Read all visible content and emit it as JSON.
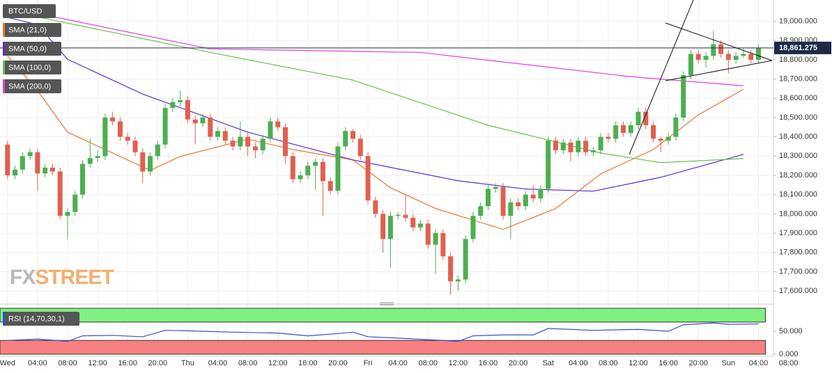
{
  "chart_data": {
    "type": "candlestick",
    "symbol": "BTC/USD",
    "last_price": {
      "value": 18861.275,
      "label": "18,861.275"
    },
    "watermark": [
      "FX",
      "STREET"
    ],
    "up_color": "#4caf50",
    "down_color": "#e0604f",
    "candles": [
      [
        18360,
        18380,
        18180,
        18200
      ],
      [
        18200,
        18250,
        18180,
        18230
      ],
      [
        18230,
        18320,
        18210,
        18300
      ],
      [
        18300,
        18340,
        18280,
        18320
      ],
      [
        18320,
        18340,
        18120,
        18210
      ],
      [
        18210,
        18260,
        18190,
        18240
      ],
      [
        18240,
        18260,
        18200,
        18220
      ],
      [
        18220,
        18240,
        17970,
        17990
      ],
      [
        17990,
        18030,
        17870,
        18010
      ],
      [
        18010,
        18120,
        17990,
        18100
      ],
      [
        18100,
        18280,
        18080,
        18260
      ],
      [
        18260,
        18390,
        18240,
        18290
      ],
      [
        18290,
        18330,
        18270,
        18300
      ],
      [
        18300,
        18520,
        18280,
        18500
      ],
      [
        18500,
        18530,
        18460,
        18480
      ],
      [
        18480,
        18500,
        18380,
        18400
      ],
      [
        18400,
        18420,
        18360,
        18380
      ],
      [
        18380,
        18400,
        18300,
        18320
      ],
      [
        18320,
        18340,
        18160,
        18220
      ],
      [
        18220,
        18320,
        18200,
        18300
      ],
      [
        18300,
        18380,
        18280,
        18360
      ],
      [
        18360,
        18570,
        18340,
        18550
      ],
      [
        18550,
        18600,
        18530,
        18580
      ],
      [
        18580,
        18640,
        18560,
        18590
      ],
      [
        18590,
        18610,
        18470,
        18490
      ],
      [
        18490,
        18510,
        18360,
        18470
      ],
      [
        18470,
        18520,
        18450,
        18500
      ],
      [
        18500,
        18520,
        18380,
        18400
      ],
      [
        18400,
        18450,
        18380,
        18430
      ],
      [
        18430,
        18450,
        18360,
        18380
      ],
      [
        18380,
        18400,
        18330,
        18350
      ],
      [
        18350,
        18480,
        18330,
        18400
      ],
      [
        18400,
        18420,
        18300,
        18350
      ],
      [
        18350,
        18370,
        18290,
        18330
      ],
      [
        18330,
        18410,
        18310,
        18390
      ],
      [
        18390,
        18500,
        18370,
        18480
      ],
      [
        18480,
        18500,
        18430,
        18450
      ],
      [
        18450,
        18470,
        18260,
        18300
      ],
      [
        18300,
        18320,
        18160,
        18180
      ],
      [
        18180,
        18220,
        18160,
        18200
      ],
      [
        18200,
        18270,
        18180,
        18250
      ],
      [
        18250,
        18290,
        18120,
        18270
      ],
      [
        18270,
        18290,
        17990,
        18170
      ],
      [
        18170,
        18190,
        18100,
        18120
      ],
      [
        18120,
        18370,
        18100,
        18350
      ],
      [
        18350,
        18450,
        18330,
        18430
      ],
      [
        18430,
        18440,
        18370,
        18390
      ],
      [
        18390,
        18410,
        18280,
        18300
      ],
      [
        18300,
        18320,
        18050,
        18070
      ],
      [
        18070,
        18090,
        17980,
        18000
      ],
      [
        18000,
        18020,
        17800,
        17870
      ],
      [
        17870,
        18010,
        17720,
        17990
      ],
      [
        17990,
        18010,
        17970,
        17995
      ],
      [
        17995,
        18100,
        17960,
        17980
      ],
      [
        17980,
        18000,
        17910,
        17930
      ],
      [
        17930,
        17970,
        17910,
        17950
      ],
      [
        17950,
        17970,
        17820,
        17840
      ],
      [
        17840,
        17920,
        17690,
        17900
      ],
      [
        17900,
        17920,
        17760,
        17780
      ],
      [
        17780,
        17800,
        17580,
        17650
      ],
      [
        17650,
        17680,
        17600,
        17660
      ],
      [
        17660,
        17890,
        17640,
        17870
      ],
      [
        17870,
        18010,
        17850,
        17990
      ],
      [
        17990,
        18060,
        17970,
        18040
      ],
      [
        18040,
        18150,
        18020,
        18130
      ],
      [
        18130,
        18160,
        18110,
        18140
      ],
      [
        18140,
        18160,
        17970,
        17990
      ],
      [
        17990,
        18080,
        17870,
        18060
      ],
      [
        18060,
        18080,
        18020,
        18040
      ],
      [
        18040,
        18120,
        18020,
        18100
      ],
      [
        18100,
        18150,
        18060,
        18080
      ],
      [
        18080,
        18150,
        18060,
        18130
      ],
      [
        18130,
        18400,
        18110,
        18380
      ],
      [
        18380,
        18400,
        18310,
        18330
      ],
      [
        18330,
        18390,
        18310,
        18370
      ],
      [
        18370,
        18390,
        18270,
        18320
      ],
      [
        18320,
        18400,
        18300,
        18380
      ],
      [
        18380,
        18400,
        18300,
        18320
      ],
      [
        18320,
        18350,
        18300,
        18330
      ],
      [
        18330,
        18420,
        18310,
        18400
      ],
      [
        18400,
        18420,
        18370,
        18390
      ],
      [
        18390,
        18480,
        18370,
        18460
      ],
      [
        18460,
        18480,
        18400,
        18420
      ],
      [
        18420,
        18480,
        18400,
        18460
      ],
      [
        18460,
        18550,
        18440,
        18530
      ],
      [
        18530,
        18550,
        18440,
        18460
      ],
      [
        18460,
        18480,
        18370,
        18390
      ],
      [
        18390,
        18400,
        18320,
        18380
      ],
      [
        18380,
        18420,
        18360,
        18400
      ],
      [
        18400,
        18520,
        18380,
        18500
      ],
      [
        18500,
        18740,
        18480,
        18720
      ],
      [
        18720,
        18850,
        18700,
        18830
      ],
      [
        18830,
        18850,
        18780,
        18800
      ],
      [
        18800,
        18840,
        18760,
        18820
      ],
      [
        18820,
        18950,
        18800,
        18880
      ],
      [
        18880,
        18900,
        18810,
        18830
      ],
      [
        18830,
        18850,
        18730,
        18800
      ],
      [
        18800,
        18840,
        18780,
        18820
      ],
      [
        18820,
        18860,
        18810,
        18830
      ],
      [
        18830,
        18850,
        18780,
        18800
      ],
      [
        18800,
        18880,
        18780,
        18861.275
      ]
    ],
    "series": [
      {
        "name": "SMA (21,0)",
        "color": "#e8772e",
        "x": [
          0,
          4,
          8,
          13,
          19,
          23,
          32,
          38,
          46,
          51,
          57,
          66,
          73,
          79,
          86,
          92,
          98
        ],
        "values": [
          18820,
          18640,
          18424,
          18334,
          18226,
          18298,
          18388,
          18334,
          18280,
          18136,
          18028,
          17920,
          18028,
          18208,
          18334,
          18514,
          18647
        ]
      },
      {
        "name": "SMA (50,0)",
        "color": "#5b2bd9",
        "x": [
          0,
          4,
          8,
          18,
          32,
          46,
          60,
          69,
          78,
          87,
          98
        ],
        "values": [
          19020,
          18982,
          18802,
          18622,
          18424,
          18280,
          18172,
          18129,
          18118,
          18190,
          18309
        ]
      },
      {
        "name": "SMA (100,0)",
        "color": "#6cc04a",
        "x": [
          0,
          27,
          46,
          64,
          79,
          87,
          98
        ],
        "values": [
          19054,
          18838,
          18694,
          18460,
          18316,
          18266,
          18287
        ]
      },
      {
        "name": "SMA (200,0)",
        "color": "#e040e0",
        "x": [
          0,
          27,
          55,
          83,
          98
        ],
        "values": [
          19072,
          18856,
          18838,
          18712,
          18665
        ]
      }
    ],
    "ylim": [
      17550,
      19110
    ],
    "yticks": [
      {
        "value": 17600,
        "label": "17,600.000"
      },
      {
        "value": 17700,
        "label": "17,700.000"
      },
      {
        "value": 17800,
        "label": "17,800.000"
      },
      {
        "value": 17900,
        "label": "17,900.000"
      },
      {
        "value": 18000,
        "label": "18,000.000"
      },
      {
        "value": 18100,
        "label": "18,100.000"
      },
      {
        "value": 18200,
        "label": "18,200.000"
      },
      {
        "value": 18300,
        "label": "18,300.000"
      },
      {
        "value": 18400,
        "label": "18,400.000"
      },
      {
        "value": 18500,
        "label": "18,500.000"
      },
      {
        "value": 18600,
        "label": "18,600.000"
      },
      {
        "value": 18700,
        "label": "18,700.000"
      },
      {
        "value": 18800,
        "label": "18,800.000"
      },
      {
        "value": 18900,
        "label": "18,900.000"
      },
      {
        "value": 19000,
        "label": "19,000.000"
      }
    ],
    "xlim": [
      -1,
      102
    ],
    "xticks": [
      {
        "value": 0,
        "label": "Wed"
      },
      {
        "value": 4,
        "label": "04:00"
      },
      {
        "value": 8,
        "label": "08:00"
      },
      {
        "value": 12,
        "label": "12:00"
      },
      {
        "value": 16,
        "label": "16:00"
      },
      {
        "value": 20,
        "label": "20:00"
      },
      {
        "value": 24,
        "label": "Thu"
      },
      {
        "value": 28,
        "label": "04:00"
      },
      {
        "value": 32,
        "label": "08:00"
      },
      {
        "value": 36,
        "label": "12:00"
      },
      {
        "value": 40,
        "label": "16:00"
      },
      {
        "value": 44,
        "label": "20:00"
      },
      {
        "value": 48,
        "label": "Fri"
      },
      {
        "value": 52,
        "label": "04:00"
      },
      {
        "value": 56,
        "label": "08:00"
      },
      {
        "value": 60,
        "label": "12:00"
      },
      {
        "value": 64,
        "label": "16:00"
      },
      {
        "value": 68,
        "label": "20:00"
      },
      {
        "value": 72,
        "label": "Sat"
      },
      {
        "value": 76,
        "label": "04:00"
      },
      {
        "value": 80,
        "label": "08:00"
      },
      {
        "value": 84,
        "label": "12:00"
      },
      {
        "value": 88,
        "label": "16:00"
      },
      {
        "value": 92,
        "label": "20:00"
      },
      {
        "value": 96,
        "label": "Sun"
      },
      {
        "value": 100,
        "label": "04:00"
      },
      {
        "value": 104,
        "label": "08:00"
      }
    ],
    "grid": true,
    "rsi": {
      "name": "RSI (14,70,30,1)",
      "color": "#3050d0",
      "levels": [
        30,
        70
      ],
      "ylim": [
        0,
        100
      ],
      "yticks": [
        {
          "value": 0,
          "label": "0.000"
        },
        {
          "value": 50,
          "label": "50.000"
        }
      ],
      "x": [
        0,
        4,
        8,
        10,
        14,
        18,
        21,
        24,
        30,
        36,
        40,
        44,
        46,
        48,
        52,
        58,
        60,
        62,
        66,
        70,
        72,
        78,
        84,
        88,
        90,
        94,
        96,
        100
      ],
      "values": [
        30,
        33,
        28,
        40,
        41,
        38,
        52,
        51,
        48,
        46,
        40,
        45,
        48,
        38,
        35,
        30,
        28,
        40,
        42,
        42,
        56,
        52,
        54,
        50,
        64,
        68,
        65,
        66
      ]
    }
  }
}
